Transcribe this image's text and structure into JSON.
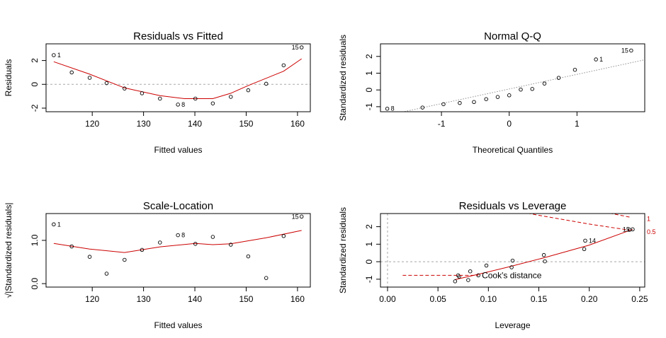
{
  "chart_data": [
    {
      "type": "scatter",
      "title": "Residuals vs Fitted",
      "xlabel": "Fitted values",
      "ylabel": "Residuals",
      "xlim": [
        111,
        162.5
      ],
      "ylim": [
        -2.3,
        3.4
      ],
      "xticks": [
        "120",
        "130",
        "140",
        "150",
        "160"
      ],
      "xtick_values": [
        120,
        130,
        140,
        150,
        160
      ],
      "yticks": [
        "-2",
        "0",
        "2"
      ],
      "ytick_values": [
        -2,
        0,
        2
      ],
      "grid": false,
      "hlines": [
        0
      ],
      "points": [
        {
          "x": 112.5,
          "y": 2.45,
          "label": "1"
        },
        {
          "x": 116.0,
          "y": 1.0
        },
        {
          "x": 119.5,
          "y": 0.55
        },
        {
          "x": 122.8,
          "y": 0.1
        },
        {
          "x": 126.3,
          "y": -0.35
        },
        {
          "x": 129.7,
          "y": -0.75
        },
        {
          "x": 133.2,
          "y": -1.2
        },
        {
          "x": 136.7,
          "y": -1.7,
          "label": "8"
        },
        {
          "x": 140.1,
          "y": -1.2
        },
        {
          "x": 143.5,
          "y": -1.6
        },
        {
          "x": 147.0,
          "y": -1.05
        },
        {
          "x": 150.4,
          "y": -0.5
        },
        {
          "x": 153.9,
          "y": 0.05
        },
        {
          "x": 157.3,
          "y": 1.6
        },
        {
          "x": 160.8,
          "y": 3.1,
          "label": "15"
        }
      ],
      "smooth": [
        [
          112.5,
          1.9
        ],
        [
          119.5,
          0.85
        ],
        [
          126.3,
          -0.3
        ],
        [
          133.2,
          -0.95
        ],
        [
          138,
          -1.2
        ],
        [
          143.5,
          -1.2
        ],
        [
          147,
          -0.75
        ],
        [
          150.4,
          -0.1
        ],
        [
          157.3,
          1.1
        ],
        [
          160.8,
          2.15
        ]
      ]
    },
    {
      "type": "scatter",
      "title": "Normal Q-Q",
      "xlabel": "Theoretical Quantiles",
      "ylabel": "Standardized residuals",
      "xlim": [
        -1.9,
        2.0
      ],
      "ylim": [
        -1.3,
        2.75
      ],
      "xticks": [
        "-1",
        "0",
        "1"
      ],
      "xtick_values": [
        -1,
        0,
        1
      ],
      "yticks": [
        "-1",
        "0",
        "1",
        "2"
      ],
      "ytick_values": [
        -1,
        0,
        1,
        2
      ],
      "grid": false,
      "reference_line": [
        [
          -1.9,
          -1.6
        ],
        [
          2.0,
          1.8
        ]
      ],
      "points": [
        {
          "x": -1.8,
          "y": -1.12,
          "label": "8"
        },
        {
          "x": -1.28,
          "y": -1.05
        },
        {
          "x": -0.97,
          "y": -0.85
        },
        {
          "x": -0.73,
          "y": -0.78
        },
        {
          "x": -0.52,
          "y": -0.72
        },
        {
          "x": -0.34,
          "y": -0.55
        },
        {
          "x": -0.17,
          "y": -0.42
        },
        {
          "x": 0.0,
          "y": -0.32
        },
        {
          "x": 0.17,
          "y": 0.02
        },
        {
          "x": 0.34,
          "y": 0.06
        },
        {
          "x": 0.52,
          "y": 0.38
        },
        {
          "x": 0.73,
          "y": 0.72
        },
        {
          "x": 0.97,
          "y": 1.2
        },
        {
          "x": 1.28,
          "y": 1.82,
          "label": "1"
        },
        {
          "x": 1.8,
          "y": 2.35,
          "label": "15"
        }
      ]
    },
    {
      "type": "scatter",
      "title": "Scale-Location",
      "xlabel": "Fitted values",
      "ylabel": "√|Standardized residuals|",
      "xlim": [
        111,
        162.5
      ],
      "ylim": [
        -0.08,
        1.62
      ],
      "xticks": [
        "120",
        "130",
        "140",
        "150",
        "160"
      ],
      "xtick_values": [
        120,
        130,
        140,
        150,
        160
      ],
      "yticks": [
        "0.0",
        "1.0"
      ],
      "ytick_values": [
        0,
        1
      ],
      "grid": false,
      "points": [
        {
          "x": 112.5,
          "y": 1.37,
          "label": "1"
        },
        {
          "x": 116.0,
          "y": 0.86
        },
        {
          "x": 119.5,
          "y": 0.62
        },
        {
          "x": 122.8,
          "y": 0.23
        },
        {
          "x": 126.3,
          "y": 0.55
        },
        {
          "x": 129.7,
          "y": 0.78
        },
        {
          "x": 133.2,
          "y": 0.95
        },
        {
          "x": 136.7,
          "y": 1.12,
          "label": "8"
        },
        {
          "x": 140.1,
          "y": 0.92
        },
        {
          "x": 143.5,
          "y": 1.08
        },
        {
          "x": 147.0,
          "y": 0.9
        },
        {
          "x": 150.4,
          "y": 0.63
        },
        {
          "x": 153.9,
          "y": 0.13
        },
        {
          "x": 157.3,
          "y": 1.1
        },
        {
          "x": 160.8,
          "y": 1.55,
          "label": "15"
        }
      ],
      "smooth": [
        [
          112.5,
          0.93
        ],
        [
          119.5,
          0.8
        ],
        [
          126.3,
          0.72
        ],
        [
          133.2,
          0.85
        ],
        [
          140.1,
          0.93
        ],
        [
          143.5,
          0.9
        ],
        [
          147,
          0.92
        ],
        [
          153.9,
          1.06
        ],
        [
          160.8,
          1.23
        ]
      ]
    },
    {
      "type": "scatter",
      "title": "Residuals vs Leverage",
      "xlabel": "Leverage",
      "ylabel": "Standardized residuals",
      "xlim": [
        -0.007,
        0.255
      ],
      "ylim": [
        -1.45,
        2.75
      ],
      "xticks": [
        "0.00",
        "0.05",
        "0.10",
        "0.15",
        "0.20",
        "0.25"
      ],
      "xtick_values": [
        0,
        0.05,
        0.1,
        0.15,
        0.2,
        0.25
      ],
      "yticks": [
        "-1",
        "0",
        "1",
        "2"
      ],
      "ytick_values": [
        -1,
        0,
        1,
        2
      ],
      "grid": false,
      "hlines": [
        0
      ],
      "vlines": [
        0
      ],
      "legend": "Cook's distance",
      "contour_labels": [
        "1",
        "0.5"
      ],
      "colors": {
        "smooth": "#cc0000",
        "ref": "#999999"
      },
      "points": [
        {
          "x": 0.067,
          "y": -1.12
        },
        {
          "x": 0.07,
          "y": -0.78
        },
        {
          "x": 0.071,
          "y": -0.85
        },
        {
          "x": 0.08,
          "y": -1.05
        },
        {
          "x": 0.082,
          "y": -0.55
        },
        {
          "x": 0.09,
          "y": -0.78
        },
        {
          "x": 0.098,
          "y": -0.22
        },
        {
          "x": 0.123,
          "y": -0.32
        },
        {
          "x": 0.124,
          "y": 0.06
        },
        {
          "x": 0.155,
          "y": 0.38
        },
        {
          "x": 0.156,
          "y": 0.02
        },
        {
          "x": 0.195,
          "y": 0.72
        },
        {
          "x": 0.196,
          "y": 1.2,
          "label": "14"
        },
        {
          "x": 0.24,
          "y": 1.82
        },
        {
          "x": 0.243,
          "y": 1.85,
          "label": "15"
        }
      ],
      "smooth": [
        [
          0.067,
          -1.02
        ],
        [
          0.09,
          -0.72
        ],
        [
          0.12,
          -0.3
        ],
        [
          0.155,
          0.22
        ],
        [
          0.2,
          0.95
        ],
        [
          0.243,
          1.85
        ]
      ],
      "cooks_1": [
        [
          0.1,
          4.5
        ],
        [
          0.15,
          3.8
        ],
        [
          0.2,
          3.0
        ],
        [
          0.24,
          2.55
        ]
      ],
      "cooks_05": [
        [
          0.1,
          3.2
        ],
        [
          0.15,
          2.65
        ],
        [
          0.2,
          2.15
        ],
        [
          0.24,
          1.8
        ]
      ],
      "cooks_legend_line": [
        [
          0.015,
          -0.78
        ],
        [
          0.09,
          -0.78
        ]
      ]
    }
  ]
}
